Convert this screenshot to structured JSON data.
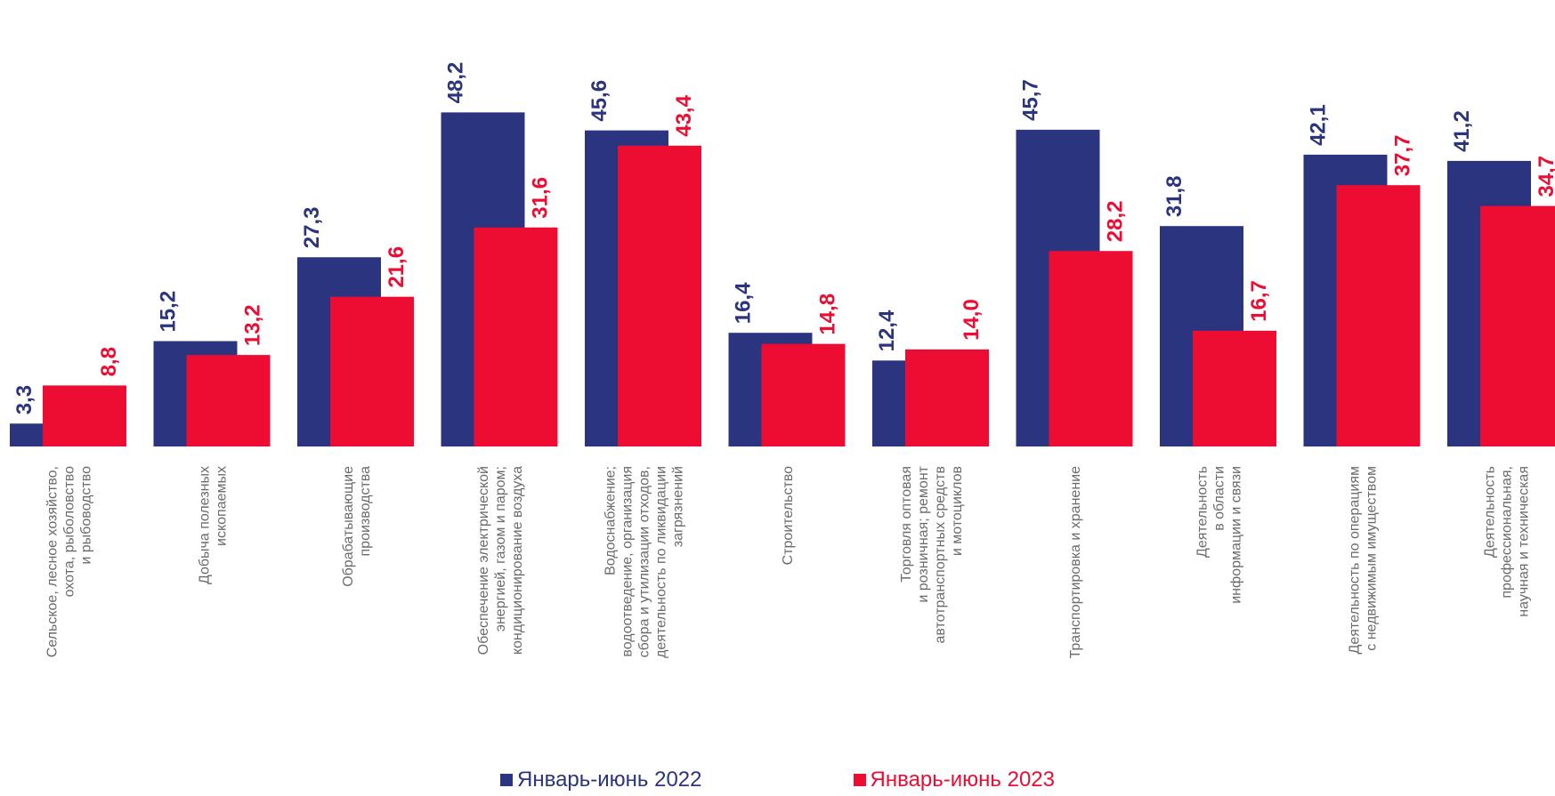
{
  "chart_data": {
    "type": "bar",
    "categories": [
      [
        "Сельское, лесное хозяйство,",
        "охота, рыболовство",
        "и рыбоводство"
      ],
      [
        "Добыча полезных",
        "ископаемых"
      ],
      [
        "Обрабатывающие",
        "производства"
      ],
      [
        "Обеспечение электрической",
        "энергией, газом и паром;",
        "кондиционирование воздуха"
      ],
      [
        "Водоснабжение;",
        "водоотведение, организация",
        "сбора и утилизации отходов,",
        "деятельность по ликвидации",
        "загрязнений"
      ],
      [
        "Строительство"
      ],
      [
        "Торговля оптовая",
        "и розничная; ремонт",
        "автотранспортных средств",
        "и мотоциклов"
      ],
      [
        "Транспортировка и хранение"
      ],
      [
        "Деятельность",
        "в области",
        "информации и связи"
      ],
      [
        "Деятельность по операциям",
        "с недвижимым имуществом"
      ],
      [
        "Деятельность",
        "профессиональная,",
        "научная и техническая"
      ]
    ],
    "series": [
      {
        "name": "Январь-июнь 2022",
        "color": "#2b347f",
        "values": [
          3.3,
          15.2,
          27.3,
          48.2,
          45.6,
          16.4,
          12.4,
          45.7,
          31.8,
          42.1,
          41.2
        ],
        "labels": [
          "3,3",
          "15,2",
          "27,3",
          "48,2",
          "45,6",
          "16,4",
          "12,4",
          "45,7",
          "31,8",
          "42,1",
          "41,2"
        ]
      },
      {
        "name": "Январь-июнь 2023",
        "color": "#ed0c32",
        "values": [
          8.8,
          13.2,
          21.6,
          31.6,
          43.4,
          14.8,
          14.0,
          28.2,
          16.7,
          37.7,
          34.7
        ],
        "labels": [
          "8,8",
          "13,2",
          "21,6",
          "31,6",
          "43,4",
          "14,8",
          "14,0",
          "28,2",
          "16,7",
          "37,7",
          "34,7"
        ]
      }
    ],
    "ylim": [
      0,
      58
    ],
    "grid": false,
    "legend_position": "bottom"
  }
}
